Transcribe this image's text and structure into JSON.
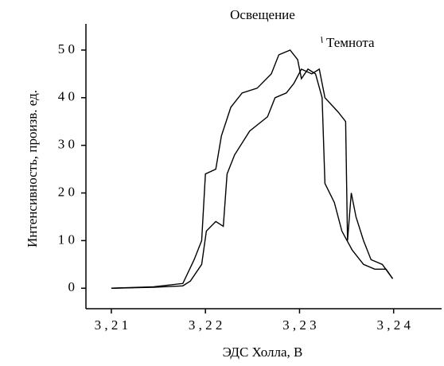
{
  "chart_data": {
    "type": "line",
    "xlabel": "ЭДС Холла, В",
    "ylabel": "Интенсивность, произв. ед.",
    "annotations": [
      "Освещение",
      "Темнота"
    ],
    "xlim": [
      3.2073,
      3.2451
    ],
    "ylim": [
      -4.3,
      55.5
    ],
    "xticks": [
      {
        "value": 3.21,
        "label": "3 , 2 1"
      },
      {
        "value": 3.22,
        "label": "3 , 2 2"
      },
      {
        "value": 3.23,
        "label": "3 , 2 3"
      },
      {
        "value": 3.24,
        "label": "3 , 2 4"
      }
    ],
    "yticks": [
      0,
      {
        "value": 10,
        "label": "1 0"
      },
      {
        "value": 20,
        "label": "2 0"
      },
      {
        "value": 30,
        "label": "3 0"
      },
      {
        "value": 40,
        "label": "4 0"
      },
      {
        "value": 50,
        "label": "5 0"
      }
    ],
    "series": [
      {
        "name": "Освещение",
        "color": "#000000",
        "x": [
          3.21,
          3.2145,
          3.2176,
          3.2188,
          3.2196,
          3.22,
          3.2211,
          3.2217,
          3.2227,
          3.2239,
          3.2255,
          3.227,
          3.2278,
          3.229,
          3.2298,
          3.2302,
          3.2309,
          3.2317,
          3.2324,
          3.2327,
          3.2337,
          3.2345,
          3.2356,
          3.2368,
          3.238,
          3.2392,
          3.2399
        ],
        "values": [
          0,
          0.3,
          1,
          6,
          10,
          24,
          25,
          32,
          38,
          41,
          42,
          45,
          49,
          50,
          48,
          44,
          46,
          45,
          40,
          22,
          18,
          12,
          8,
          5,
          4,
          4,
          2
        ]
      },
      {
        "name": "Темнота",
        "color": "#000000",
        "x": [
          3.21,
          3.2145,
          3.2176,
          3.2184,
          3.2196,
          3.2201,
          3.2211,
          3.2219,
          3.2223,
          3.2231,
          3.2247,
          3.2266,
          3.2274,
          3.2286,
          3.2294,
          3.2302,
          3.2313,
          3.2321,
          3.2327,
          3.2341,
          3.2349,
          3.2351,
          3.2355,
          3.236,
          3.2368,
          3.2376,
          3.2388,
          3.2399
        ],
        "values": [
          0,
          0.2,
          0.5,
          1.5,
          5,
          12,
          14,
          13,
          24,
          28,
          33,
          36,
          40,
          41,
          43,
          46,
          45,
          46,
          40,
          37,
          35,
          10,
          20,
          15,
          10,
          6,
          5,
          2
        ]
      }
    ]
  }
}
